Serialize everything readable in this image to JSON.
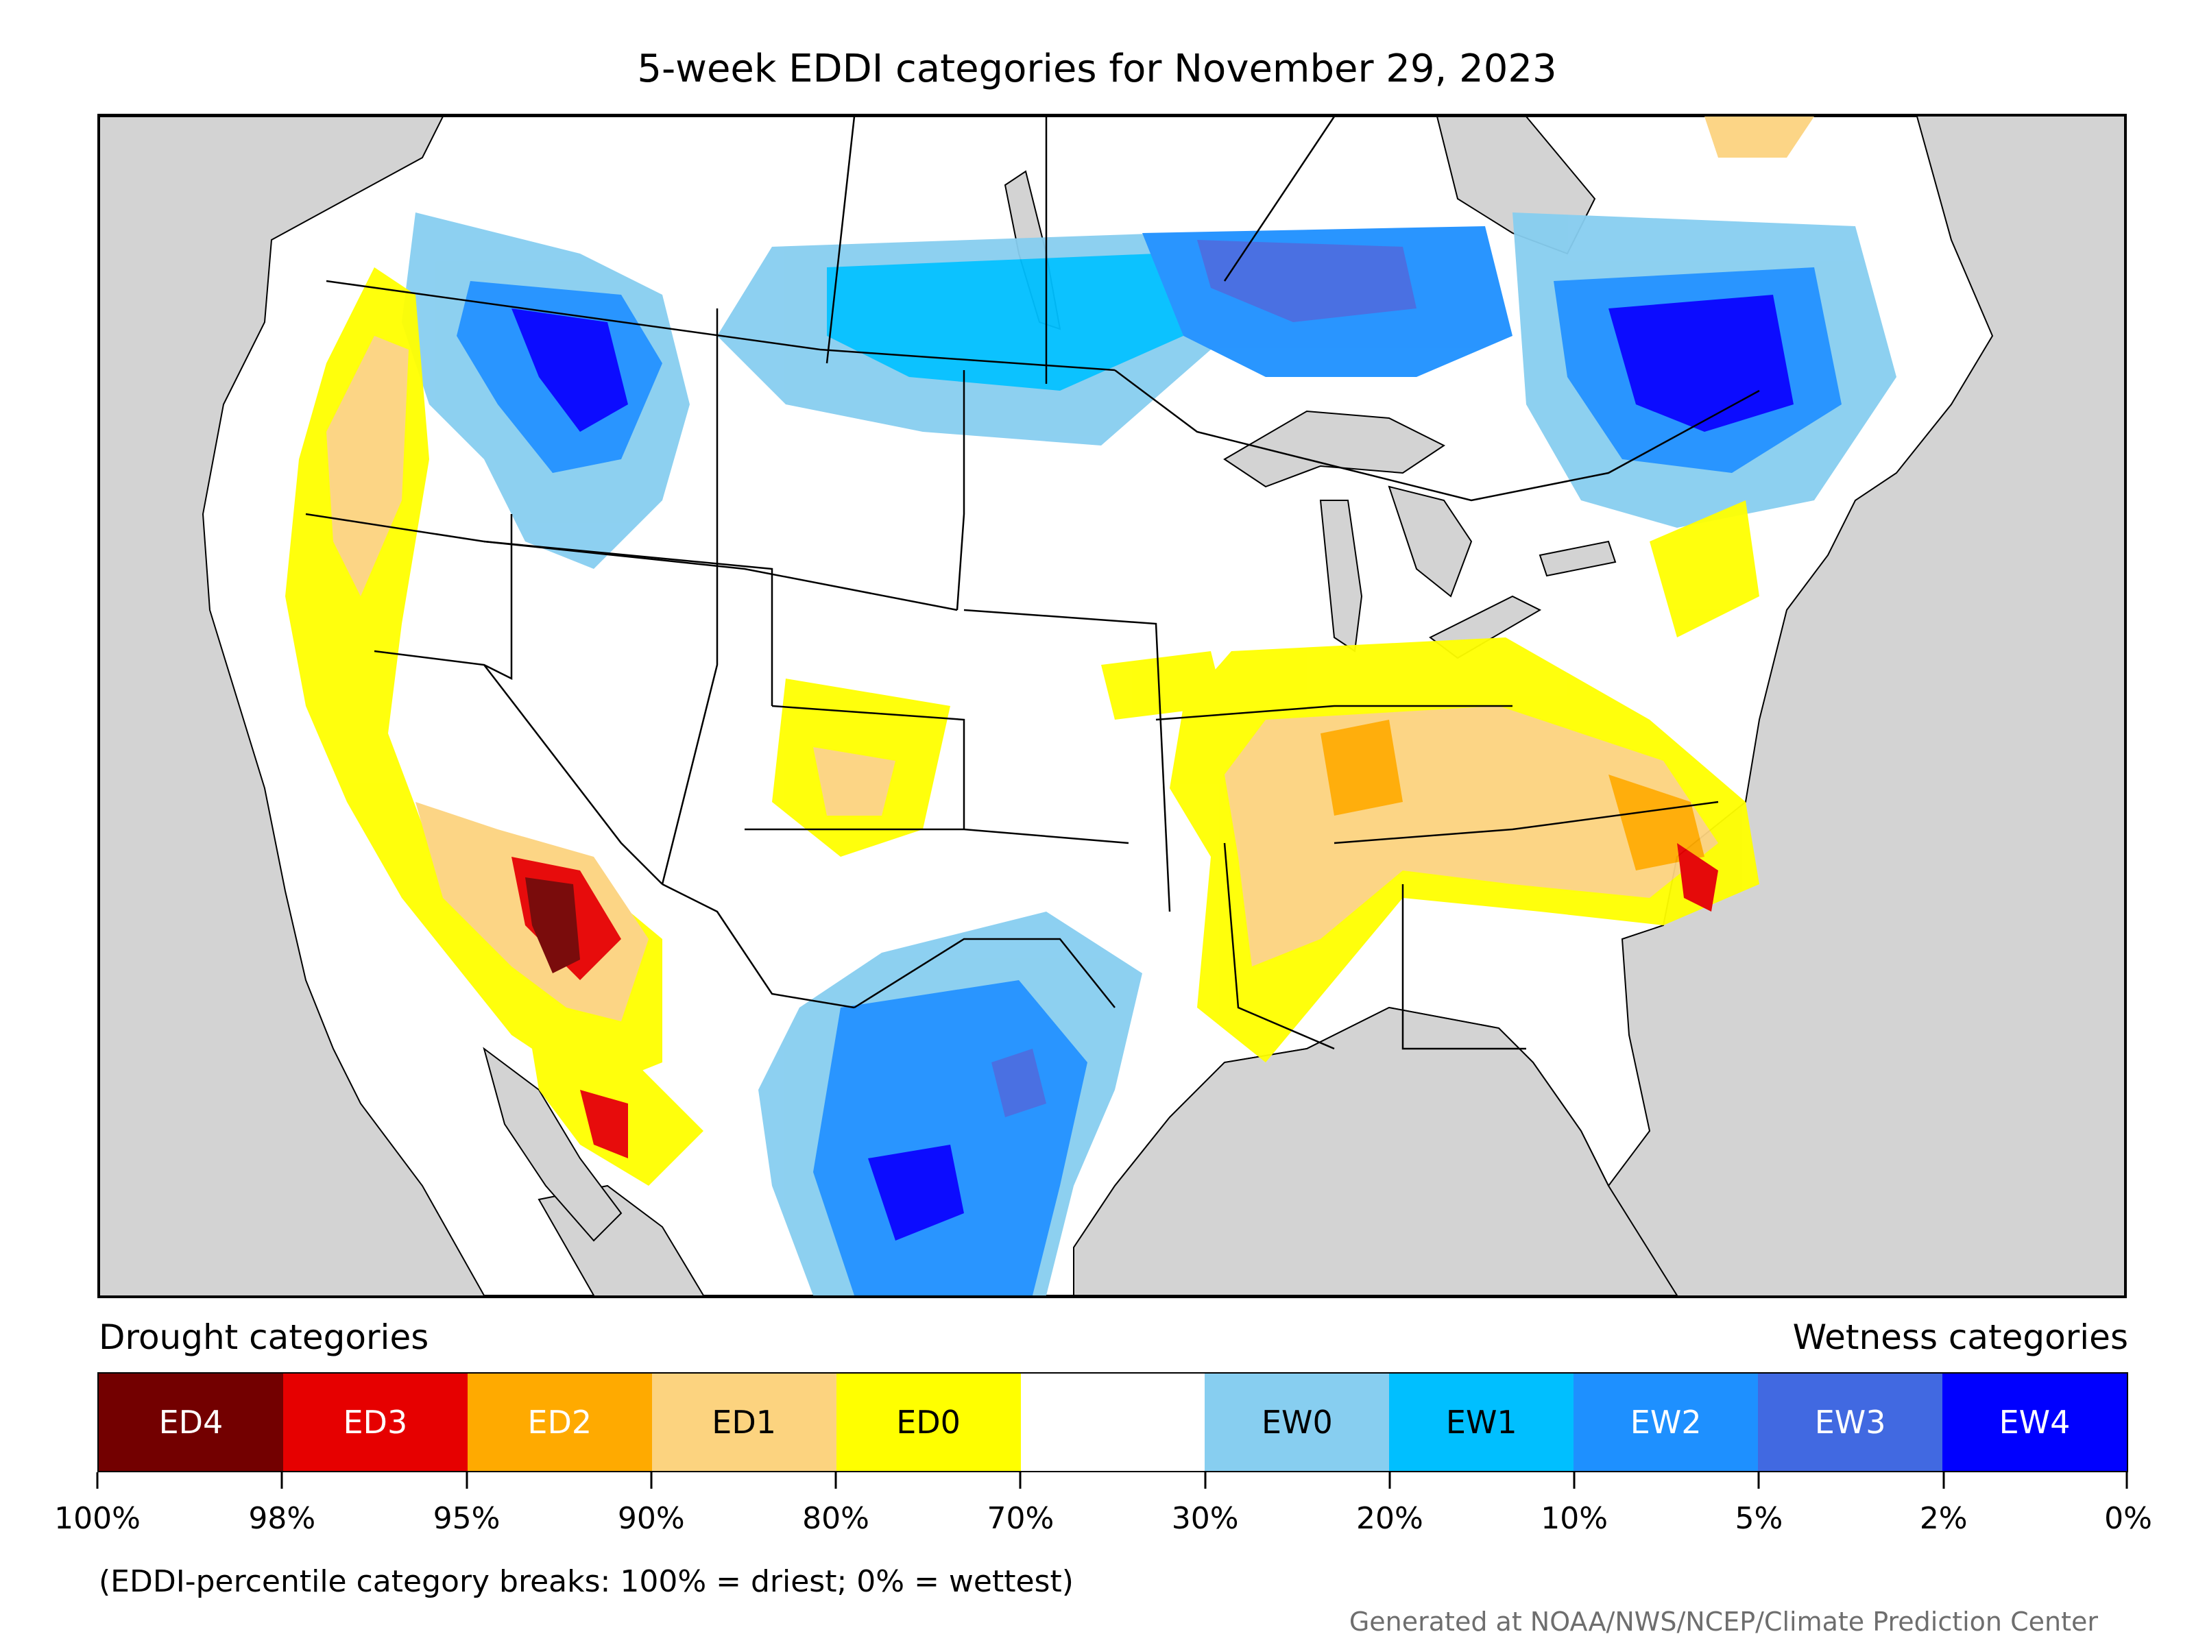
{
  "title": "5-week EDDI categories for November 29, 2023",
  "legend": {
    "drought_heading": "Drought categories",
    "wetness_heading": "Wetness categories",
    "categories": [
      {
        "label": "ED4",
        "color": "#730000",
        "text_color": "#ffffff"
      },
      {
        "label": "ED3",
        "color": "#e60000",
        "text_color": "#ffffff"
      },
      {
        "label": "ED2",
        "color": "#ffaa00",
        "text_color": "#ffffff"
      },
      {
        "label": "ED1",
        "color": "#fcd37f",
        "text_color": "#000000"
      },
      {
        "label": "ED0",
        "color": "#ffff00",
        "text_color": "#000000"
      },
      {
        "label": "",
        "color": "#ffffff",
        "text_color": "#000000"
      },
      {
        "label": "EW0",
        "color": "#87cef0",
        "text_color": "#000000"
      },
      {
        "label": "EW1",
        "color": "#00bfff",
        "text_color": "#000000"
      },
      {
        "label": "EW2",
        "color": "#1e90ff",
        "text_color": "#ffffff"
      },
      {
        "label": "EW3",
        "color": "#4169e1",
        "text_color": "#ffffff"
      },
      {
        "label": "EW4",
        "color": "#0000ff",
        "text_color": "#ffffff"
      }
    ],
    "breaks": [
      "100%",
      "98%",
      "95%",
      "90%",
      "80%",
      "70%",
      "30%",
      "20%",
      "10%",
      "5%",
      "2%",
      "0%"
    ]
  },
  "note": "(EDDI-percentile category breaks: 100% = driest; 0% = wettest)",
  "credit": "Generated at NOAA/NWS/NCEP/Climate Prediction Center",
  "map": {
    "background_color": "#d3d3d3",
    "land_color": "#ffffff"
  }
}
